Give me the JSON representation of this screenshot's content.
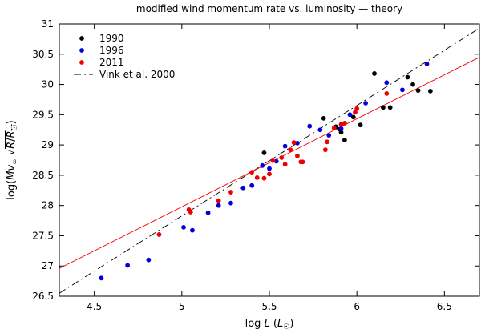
{
  "chart_data": {
    "type": "scatter",
    "title": "modified wind momentum rate vs. luminosity — theory",
    "xlabel": "log L (L☉)",
    "ylabel": "log(Ṁ v∞ √(R/R☉))",
    "xlim": [
      4.3,
      6.7
    ],
    "ylim": [
      26.5,
      31
    ],
    "xticks": [
      4.5,
      5,
      5.5,
      6,
      6.5
    ],
    "yticks": [
      26.5,
      27,
      27.5,
      28,
      28.5,
      29,
      29.5,
      30,
      30.5,
      31
    ],
    "xtick_labels": [
      "4.5",
      "5",
      "5.5",
      "6",
      "6.5"
    ],
    "ytick_labels": [
      "26.5",
      "27",
      "27.5",
      "28",
      "28.5",
      "29",
      "29.5",
      "30",
      "30.5",
      "31"
    ],
    "legend_position": "top-left",
    "series": [
      {
        "name": "1990",
        "color": "#000000",
        "x": [
          5.47,
          5.81,
          5.88,
          5.9,
          5.91,
          5.93,
          5.98,
          6.02,
          6.1,
          6.15,
          6.19,
          6.29,
          6.32,
          6.35,
          6.42
        ],
        "y": [
          28.87,
          29.44,
          29.3,
          29.26,
          29.21,
          29.08,
          29.46,
          29.33,
          30.18,
          29.62,
          29.62,
          30.12,
          30.0,
          29.9,
          29.89
        ]
      },
      {
        "name": "1996",
        "color": "#0000dd",
        "x": [
          4.54,
          4.69,
          4.81,
          5.01,
          5.06,
          5.15,
          5.21,
          5.28,
          5.35,
          5.4,
          5.46,
          5.5,
          5.54,
          5.59,
          5.66,
          5.73,
          5.79,
          5.84,
          5.91,
          5.96,
          6.05,
          6.17,
          6.26,
          6.4
        ],
        "y": [
          26.8,
          27.01,
          27.1,
          27.64,
          27.59,
          27.88,
          28.0,
          28.04,
          28.29,
          28.33,
          28.66,
          28.61,
          28.73,
          28.98,
          29.03,
          29.31,
          29.25,
          29.16,
          29.27,
          29.5,
          29.69,
          30.03,
          29.91,
          30.34
        ]
      },
      {
        "name": "2011",
        "color": "#ee0000",
        "x": [
          4.87,
          5.04,
          5.05,
          5.21,
          5.28,
          5.4,
          5.43,
          5.47,
          5.5,
          5.52,
          5.57,
          5.59,
          5.62,
          5.64,
          5.66,
          5.68,
          5.69,
          5.82,
          5.83,
          5.87,
          5.91,
          5.93,
          5.99,
          6.0,
          6.17
        ],
        "y": [
          27.52,
          27.93,
          27.89,
          28.08,
          28.22,
          28.55,
          28.46,
          28.45,
          28.52,
          28.74,
          28.79,
          28.68,
          28.92,
          29.04,
          28.82,
          28.72,
          28.72,
          28.92,
          29.05,
          29.28,
          29.34,
          29.36,
          29.54,
          29.6,
          29.85
        ]
      }
    ],
    "lines": [
      {
        "name": "Vink et al. 2000",
        "color": "#000000",
        "style": "dashdot",
        "x": [
          4.3,
          6.7
        ],
        "y": [
          26.55,
          30.93
        ],
        "in_legend": true
      },
      {
        "name": "2011 fit",
        "color": "#ee0000",
        "style": "solid",
        "x": [
          4.3,
          6.7
        ],
        "y": [
          26.96,
          30.45
        ],
        "in_legend": false
      }
    ]
  }
}
